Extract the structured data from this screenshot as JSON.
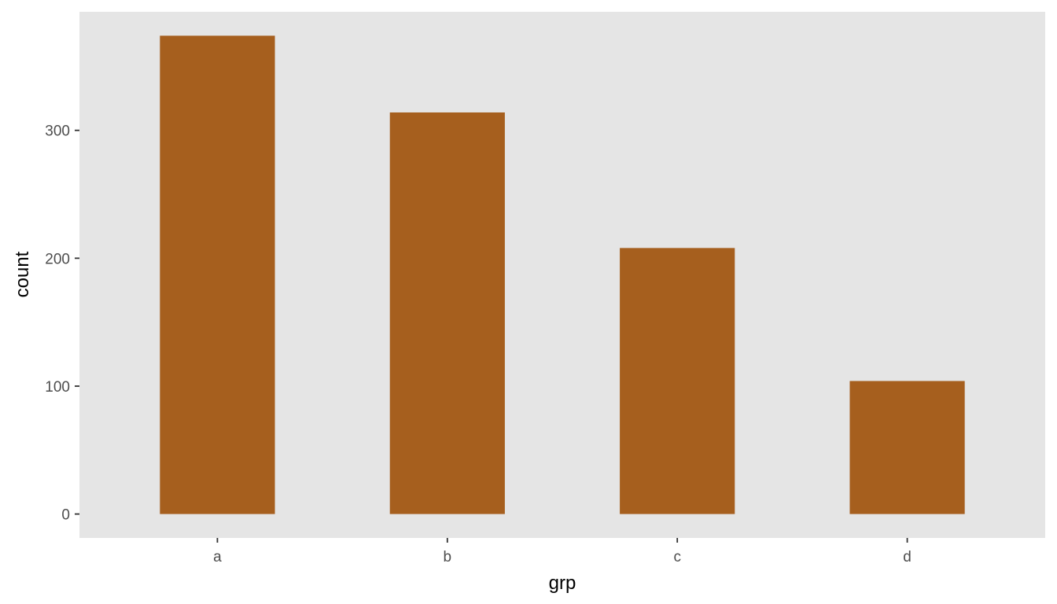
{
  "chart_data": {
    "type": "bar",
    "categories": [
      "a",
      "b",
      "c",
      "d"
    ],
    "values": [
      374,
      314,
      208,
      104
    ],
    "xlabel": "grp",
    "ylabel": "count",
    "ylim": [
      -18.7,
      392.7
    ],
    "yticks": [
      0,
      100,
      200,
      300
    ],
    "grid": false,
    "legend": "none",
    "colors": {
      "bar": "#a65f1e",
      "panel_background": "#e5e5e5",
      "tick_text": "#4d4d4d",
      "tick_mark": "#333333"
    }
  }
}
